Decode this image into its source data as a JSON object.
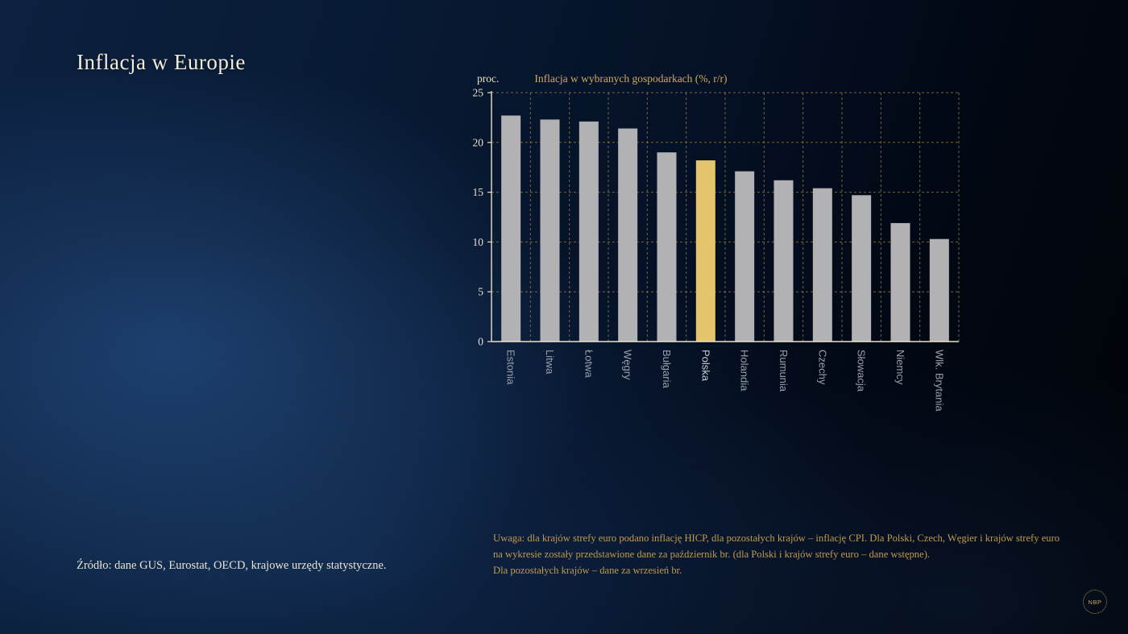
{
  "slide": {
    "title": "Inflacja w Europie",
    "source": "Źródło: dane GUS, Eurostat, OECD, krajowe urzędy statystyczne.",
    "note_lines": [
      "Uwaga: dla krajów strefy euro podano inflację HICP, dla pozostałych krajów – inflację CPI. Dla Polski, Czech, Węgier i krajów strefy euro",
      "na wykresie zostały przedstawione dane za październik br. (dla Polski i krajów strefy euro – dane wstępne).",
      "Dla pozostałych krajów – dane za wrzesień br."
    ],
    "logo_text": "NBP"
  },
  "chart_data": {
    "type": "bar",
    "title": "Inflacja w wybranych gospodarkach (%, r/r)",
    "y_axis_unit": "proc.",
    "categories": [
      "Estonia",
      "Litwa",
      "Łotwa",
      "Węgry",
      "Bułgaria",
      "Polska",
      "Holandia",
      "Rumunia",
      "Czechy",
      "Słowacja",
      "Niemcy",
      "Wlk. Brytania"
    ],
    "values": [
      22.7,
      22.3,
      22.1,
      21.4,
      19.0,
      18.2,
      17.1,
      16.2,
      15.4,
      14.7,
      11.9,
      10.3
    ],
    "highlight_index": 5,
    "highlight_category": "Polska",
    "ylim": [
      0,
      25
    ],
    "yticks": [
      0,
      5,
      10,
      15,
      20,
      25
    ],
    "grid": "dashed",
    "legend": "none",
    "colors": {
      "bar": "#b2b2b4",
      "highlight": "#e5c56b",
      "grid": "#9c8340",
      "axis": "#e9e2cd",
      "tick_text": "#e9e2cd",
      "category_text": "#99a0a8",
      "title_text": "#d2ab57"
    }
  }
}
